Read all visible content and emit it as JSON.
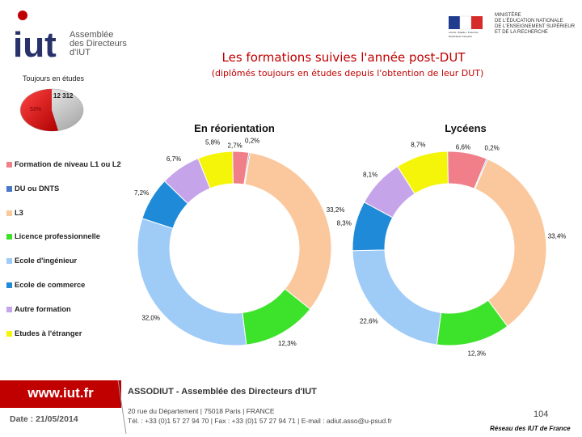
{
  "header": {
    "logo_mark": "iut",
    "logo_lines": [
      "Assemblée",
      "des Directeurs",
      "d'IUT"
    ],
    "ministry_lines": [
      "Ministère",
      "de l'Éducation nationale",
      "de l'Enseignement supérieur",
      "et de la Recherche"
    ],
    "ministry_emblem_text": [
      "Liberté • Égalité • Fraternité",
      "République Française"
    ],
    "title": "Les formations suivies l'année post-DUT",
    "subtitle": "(diplômés toujours en études depuis l'obtention de leur DUT)"
  },
  "mini_chart": {
    "label": "Toujours en études",
    "value_label": "12 312",
    "percent_label": "53%"
  },
  "colors": {
    "title_red": "#c00000",
    "categories": [
      "#f07f89",
      "#4a78c4",
      "#fac89c",
      "#3de22a",
      "#9fcbf7",
      "#1f8ad8",
      "#c6a4ea",
      "#f5f50a"
    ]
  },
  "legend": [
    "Formation de niveau L1 ou L2",
    "DU ou DNTS",
    "L3",
    "Licence professionnelle",
    "Ecole d'ingénieur",
    "Ecole de commerce",
    "Autre formation",
    "Etudes à l'étranger"
  ],
  "chart_data": [
    {
      "type": "pie",
      "title": "En réorientation",
      "categories": [
        "Formation de niveau L1 ou L2",
        "DU ou DNTS",
        "L3",
        "Licence professionnelle",
        "Ecole d'ingénieur",
        "Ecole de commerce",
        "Autre formation",
        "Etudes à l'étranger"
      ],
      "values": [
        2.7,
        0.2,
        33.2,
        12.3,
        32.0,
        7.2,
        6.7,
        5.8
      ],
      "labels": [
        "2,7%",
        "0,2%",
        "33,2%",
        "12,3%",
        "32,0%",
        "7,2%",
        "6,7%",
        "5,8%"
      ],
      "donut": true
    },
    {
      "type": "pie",
      "title": "Lycéens",
      "categories": [
        "Formation de niveau L1 ou L2",
        "DU ou DNTS",
        "L3",
        "Licence professionnelle",
        "Ecole d'ingénieur",
        "Ecole de commerce",
        "Autre formation",
        "Etudes à l'étranger"
      ],
      "values": [
        6.6,
        0.2,
        33.4,
        12.3,
        22.6,
        8.3,
        8.1,
        8.7
      ],
      "labels": [
        "6,6%",
        "0,2%",
        "33,4%",
        "12,3%",
        "22,6%",
        "8,3%",
        "8,1%",
        "8,7%"
      ],
      "donut": true
    }
  ],
  "footer": {
    "url": "www.iut.fr",
    "date": "Date : 21/05/2014",
    "org": "ASSODIUT - Assemblée des Directeurs d'IUT",
    "address": "20 rue du Département | 75018 Paris | FRANCE",
    "contact": "Tél. : +33 (0)1 57 27 94 70 | Fax : +33 (0)1 57 27 94 71 | E-mail : adiut.asso@u-psud.fr",
    "page": "104",
    "network": "Réseau des IUT de France"
  }
}
